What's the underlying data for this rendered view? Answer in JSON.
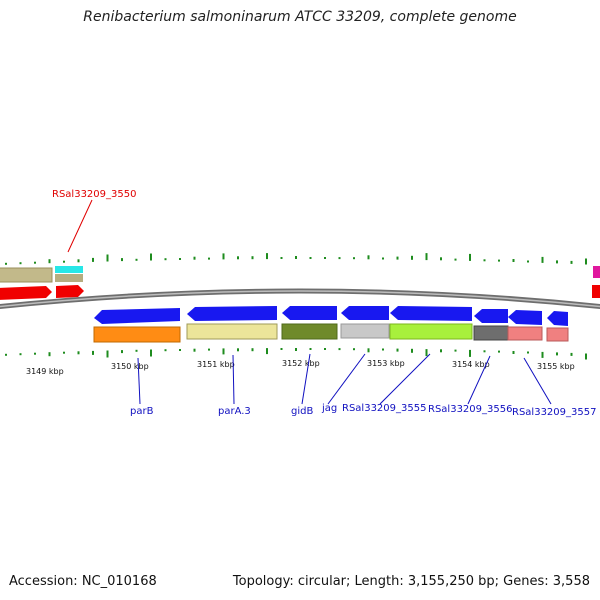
{
  "title": "Renibacterium salmoninarum ATCC 33209, complete genome",
  "footer": {
    "accession": "Accession: NC_010168",
    "summary": "Topology: circular; Length: 3,155,250 bp; Genes: 3,558"
  },
  "colors": {
    "forward_cds": "#ff0000",
    "reverse_cds": "#1a1aff",
    "backbone": "#6e6e6e",
    "ticks": "#1e8c1e",
    "label_blue": "#1010c0",
    "label_red": "#e00000"
  },
  "kbp_labels": [
    "3149 kbp",
    "3150 kbp",
    "3151 kbp",
    "3152 kbp",
    "3153 kbp",
    "3154 kbp",
    "3155 kbp"
  ],
  "gene_labels": [
    "RSal33209_3550",
    "parB",
    "parA.3",
    "gidB",
    "jag",
    "RSal33209_3555",
    "RSal33209_3556",
    "RSal33209_3557"
  ]
}
